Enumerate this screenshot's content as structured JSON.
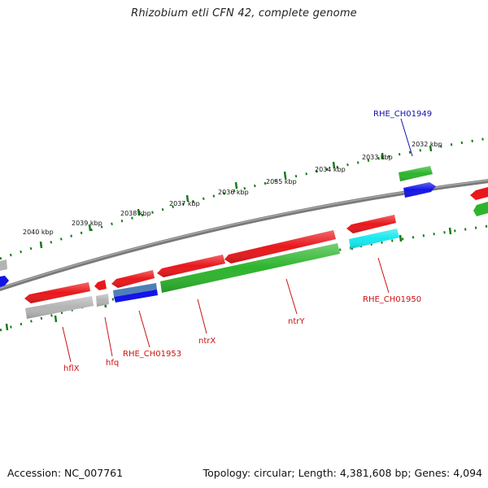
{
  "title": "Rhizobium etli CFN 42, complete genome",
  "footer": {
    "accession": "Accession: NC_007761",
    "summary": "Topology: circular; Length: 4,381,608 bp; Genes: 4,094"
  },
  "scale_labels": [
    "2032 kbp",
    "2033 kbp",
    "2034 kbp",
    "2035 kbp",
    "2036 kbp",
    "2037 kbp",
    "2038 kbp",
    "2039 kbp",
    "2040 kbp"
  ],
  "gene_labels": {
    "rhe_ch01949": "RHE_CH01949",
    "rhe_ch01950": "RHE_CH01950",
    "ntrY": "ntrY",
    "ntrX": "ntrX",
    "rhe_ch01953": "RHE_CH01953",
    "hfq": "hfq",
    "hflX": "hflX"
  },
  "colors": {
    "red": "#e8171b",
    "green": "#2db42d",
    "blue": "#1414e6",
    "steel_blue": "#4f7fb8",
    "cyan": "#17e8ee",
    "gray": "#b4b4b4",
    "label_red": "#cc1111",
    "label_blue": "#1111aa",
    "backbone": "#7a7a7a",
    "ruler": "#1a7a1a"
  }
}
